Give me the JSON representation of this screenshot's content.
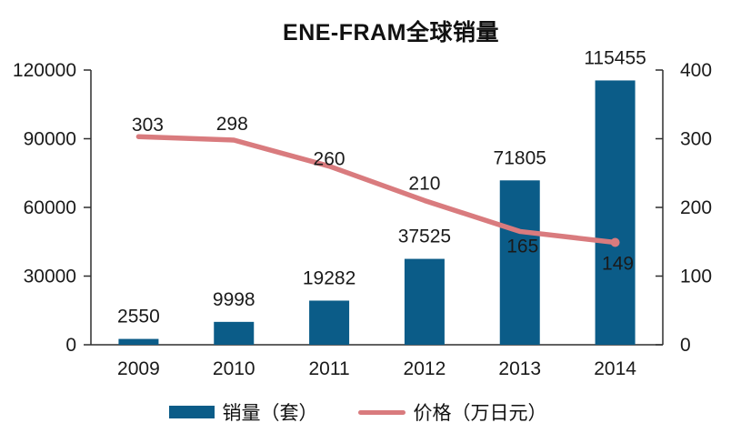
{
  "chart_data": {
    "type": "bar",
    "title": "ENE-FRAM全球销量",
    "categories": [
      "2009",
      "2010",
      "2011",
      "2012",
      "2013",
      "2014"
    ],
    "series": [
      {
        "name": "销量（套）",
        "type": "bar",
        "axis": "left",
        "color": "#0b5c88",
        "values": [
          2550,
          9998,
          19282,
          37525,
          71805,
          115455
        ]
      },
      {
        "name": "价格（万日元）",
        "type": "line",
        "axis": "right",
        "color": "#d97b7e",
        "values": [
          303,
          298,
          260,
          210,
          165,
          149
        ]
      }
    ],
    "left_axis": {
      "min": 0,
      "max": 120000,
      "ticks": [
        0,
        30000,
        60000,
        90000,
        120000
      ]
    },
    "right_axis": {
      "min": 0,
      "max": 400,
      "ticks": [
        0,
        100,
        200,
        300,
        400
      ]
    },
    "grid": false,
    "legend_position": "bottom",
    "colors": {
      "text": "#1a1a1a",
      "axis": "#2e2e2e",
      "bar": "#0b5c88",
      "line": "#d97b7e"
    }
  }
}
